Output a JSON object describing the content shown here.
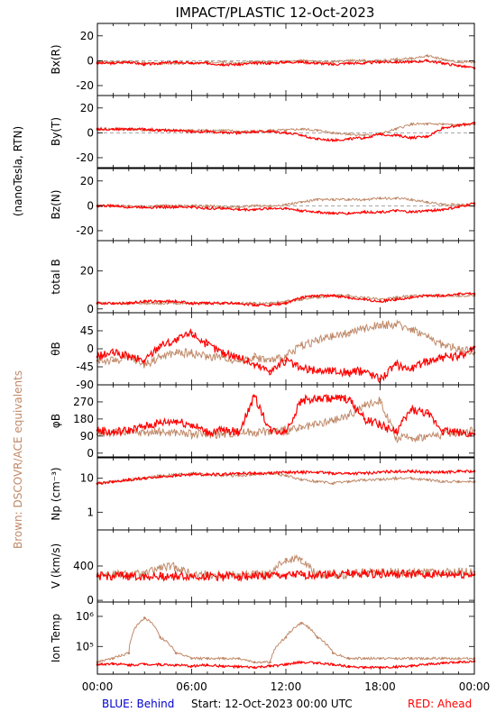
{
  "title": "IMPACT/PLASTIC   12-Oct-2023",
  "left_labels": {
    "units": "(nanoTesla, RTN)",
    "brown_note": "Brown: DSCOVR/ACE equivalents"
  },
  "footer": {
    "blue": "BLUE: Behind",
    "start": "Start: 12-Oct-2023 00:00 UTC",
    "red": "RED: Ahead"
  },
  "colors": {
    "ahead": "#ff0000",
    "equivalent": "#c08a6a",
    "behind": "#0000cc",
    "axis": "#000000"
  },
  "chart_data": [
    {
      "type": "scatter",
      "ylabel": "Bx(R)",
      "ylim": [
        -28,
        30
      ],
      "yticks": [
        "20",
        "0",
        "-20"
      ],
      "yticks_values": [
        20,
        0,
        -20
      ],
      "zero_line": true,
      "series": [
        {
          "name": "RED: Ahead",
          "x": [
            0,
            1,
            2,
            3,
            4,
            5,
            6,
            7,
            8,
            9,
            10,
            11,
            12,
            13,
            14,
            15,
            16,
            17,
            18,
            19,
            20,
            21,
            22,
            23,
            24
          ],
          "values": [
            -2,
            -2,
            -1,
            -3,
            -2,
            -1,
            -2,
            -2,
            -3,
            -3,
            -2,
            -2,
            -1,
            -1,
            -2,
            -3,
            -2,
            -2,
            -1,
            -1,
            -1,
            0,
            -2,
            -4,
            -6
          ]
        },
        {
          "x": [
            0,
            1,
            2,
            3,
            4,
            5,
            6,
            7,
            8,
            9,
            10,
            11,
            12,
            13,
            14,
            15,
            16,
            17,
            18,
            19,
            20,
            21,
            22,
            23,
            24
          ],
          "values": [
            -1,
            -1,
            -1,
            -2,
            -2,
            -2,
            -2,
            -1,
            -1,
            -2,
            -1,
            -1,
            -1,
            0,
            -1,
            -1,
            0,
            0,
            0,
            1,
            2,
            4,
            1,
            -1,
            -1
          ]
        }
      ]
    },
    {
      "type": "scatter",
      "ylabel": "By(T)",
      "ylim": [
        -28,
        30
      ],
      "yticks": [
        "20",
        "0",
        "-20"
      ],
      "yticks_values": [
        20,
        0,
        -20
      ],
      "zero_line": true,
      "series": [
        {
          "x": [
            0,
            1,
            2,
            3,
            4,
            5,
            6,
            7,
            8,
            9,
            10,
            11,
            12,
            13,
            14,
            15,
            16,
            17,
            18,
            19,
            20,
            21,
            22,
            23,
            24
          ],
          "values": [
            3,
            3,
            3,
            3,
            2,
            2,
            1,
            1,
            0,
            0,
            1,
            1,
            0,
            -2,
            -5,
            -6,
            -5,
            -4,
            -1,
            -2,
            -4,
            -3,
            4,
            6,
            8
          ]
        },
        {
          "x": [
            0,
            1,
            2,
            3,
            4,
            5,
            6,
            7,
            8,
            9,
            10,
            11,
            12,
            13,
            14,
            15,
            16,
            17,
            18,
            19,
            20,
            21,
            22,
            23,
            24
          ],
          "values": [
            3,
            3,
            3,
            2,
            2,
            2,
            2,
            2,
            2,
            1,
            1,
            2,
            2,
            3,
            2,
            0,
            -1,
            -2,
            -1,
            3,
            7,
            7,
            7,
            6,
            7
          ]
        }
      ]
    },
    {
      "type": "scatter",
      "ylabel": "Bz(N)",
      "ylim": [
        -28,
        30
      ],
      "yticks": [
        "20",
        "0",
        "-20"
      ],
      "yticks_values": [
        20,
        0,
        -20
      ],
      "zero_line": true,
      "series": [
        {
          "x": [
            0,
            1,
            2,
            3,
            4,
            5,
            6,
            7,
            8,
            9,
            10,
            11,
            12,
            13,
            14,
            15,
            16,
            17,
            18,
            19,
            20,
            21,
            22,
            23,
            24
          ],
          "values": [
            0,
            0,
            -1,
            -1,
            -1,
            -1,
            -1,
            -2,
            -2,
            -3,
            -3,
            -2,
            -2,
            -4,
            -5,
            -6,
            -6,
            -5,
            -5,
            -4,
            -5,
            -4,
            -3,
            -1,
            2
          ]
        },
        {
          "x": [
            0,
            1,
            2,
            3,
            4,
            5,
            6,
            7,
            8,
            9,
            10,
            11,
            12,
            13,
            14,
            15,
            16,
            17,
            18,
            19,
            20,
            21,
            22,
            23,
            24
          ],
          "values": [
            0,
            0,
            0,
            -1,
            0,
            0,
            0,
            0,
            -1,
            -1,
            0,
            0,
            1,
            3,
            5,
            5,
            5,
            5,
            6,
            6,
            5,
            3,
            1,
            1,
            0
          ]
        }
      ]
    },
    {
      "type": "scatter",
      "ylabel": "total B",
      "ylim": [
        -2,
        36
      ],
      "yticks": [
        "20",
        "0"
      ],
      "yticks_values": [
        20,
        0
      ],
      "zero_line": false,
      "series": [
        {
          "x": [
            0,
            1,
            2,
            3,
            4,
            5,
            6,
            7,
            8,
            9,
            10,
            11,
            12,
            13,
            14,
            15,
            16,
            17,
            18,
            19,
            20,
            21,
            22,
            23,
            24
          ],
          "values": [
            3,
            3,
            3,
            4,
            4,
            4,
            3,
            3,
            3,
            3,
            2,
            2,
            3,
            6,
            7,
            7,
            6,
            5,
            4,
            5,
            6,
            7,
            7,
            8,
            8
          ]
        },
        {
          "x": [
            0,
            1,
            2,
            3,
            4,
            5,
            6,
            7,
            8,
            9,
            10,
            11,
            12,
            13,
            14,
            15,
            16,
            17,
            18,
            19,
            20,
            21,
            22,
            23,
            24
          ],
          "values": [
            3,
            3,
            3,
            3,
            3,
            3,
            3,
            3,
            3,
            3,
            3,
            3,
            4,
            5,
            6,
            7,
            7,
            6,
            5,
            6,
            7,
            7,
            7,
            7,
            7
          ]
        }
      ]
    },
    {
      "type": "scatter",
      "ylabel": "θB",
      "ylim": [
        -90,
        90
      ],
      "yticks": [
        "45",
        "0",
        "-45",
        "-90"
      ],
      "yticks_values": [
        45,
        0,
        -45,
        -90
      ],
      "zero_line": false,
      "series": [
        {
          "x": [
            0,
            1,
            2,
            3,
            4,
            5,
            6,
            7,
            8,
            9,
            10,
            11,
            12,
            13,
            14,
            15,
            16,
            17,
            18,
            19,
            20,
            21,
            22,
            23,
            24
          ],
          "values": [
            -20,
            -10,
            -20,
            -30,
            10,
            20,
            40,
            10,
            -10,
            -20,
            -40,
            -55,
            -30,
            -50,
            -55,
            -55,
            -60,
            -55,
            -75,
            -40,
            -50,
            -30,
            -20,
            -20,
            5
          ]
        },
        {
          "x": [
            0,
            1,
            2,
            3,
            4,
            5,
            6,
            7,
            8,
            9,
            10,
            11,
            12,
            13,
            14,
            15,
            16,
            17,
            18,
            19,
            20,
            21,
            22,
            23,
            24
          ],
          "values": [
            -30,
            -30,
            -20,
            -40,
            -20,
            -10,
            -10,
            -20,
            -20,
            -30,
            -20,
            -30,
            -20,
            10,
            20,
            30,
            40,
            50,
            60,
            60,
            50,
            30,
            10,
            0,
            -10
          ]
        }
      ]
    },
    {
      "type": "scatter",
      "ylabel": "φB",
      "ylim": [
        -20,
        360
      ],
      "yticks": [
        "270",
        "180",
        "90",
        "0"
      ],
      "yticks_values": [
        270,
        180,
        90,
        0
      ],
      "zero_line": false,
      "series": [
        {
          "x": [
            0,
            1,
            2,
            3,
            4,
            5,
            6,
            7,
            8,
            9,
            10,
            11,
            12,
            13,
            14,
            15,
            16,
            17,
            18,
            19,
            20,
            21,
            22,
            23,
            24
          ],
          "values": [
            120,
            110,
            120,
            140,
            160,
            170,
            150,
            110,
            120,
            110,
            300,
            120,
            115,
            280,
            285,
            290,
            285,
            180,
            150,
            110,
            230,
            210,
            120,
            110,
            100
          ]
        },
        {
          "x": [
            0,
            1,
            2,
            3,
            4,
            5,
            6,
            7,
            8,
            9,
            10,
            11,
            12,
            13,
            14,
            15,
            16,
            17,
            18,
            19,
            20,
            21,
            22,
            23,
            24
          ],
          "values": [
            100,
            110,
            110,
            110,
            110,
            110,
            100,
            100,
            100,
            110,
            110,
            115,
            120,
            130,
            150,
            170,
            200,
            250,
            280,
            80,
            80,
            90,
            100,
            110,
            120
          ]
        }
      ]
    },
    {
      "type": "scatter",
      "ylabel": "Np (cm⁻³)",
      "log": true,
      "ylim": [
        0.3,
        40
      ],
      "yticks": [
        "10",
        "1"
      ],
      "yticks_values": [
        10,
        1
      ],
      "zero_line": false,
      "series": [
        {
          "x": [
            0,
            1,
            2,
            3,
            4,
            5,
            6,
            7,
            8,
            9,
            10,
            11,
            12,
            13,
            14,
            15,
            16,
            17,
            18,
            19,
            20,
            21,
            22,
            23,
            24
          ],
          "values": [
            7,
            8,
            9,
            10,
            11,
            12,
            13,
            13,
            13,
            14,
            14,
            14,
            15,
            15,
            15,
            14,
            14,
            14,
            15,
            16,
            16,
            15,
            15,
            16,
            16
          ]
        },
        {
          "x": [
            0,
            1,
            2,
            3,
            4,
            5,
            6,
            7,
            8,
            9,
            10,
            11,
            12,
            13,
            14,
            15,
            16,
            17,
            18,
            19,
            20,
            21,
            22,
            23,
            24
          ],
          "values": [
            7,
            8,
            9,
            10,
            12,
            13,
            14,
            13,
            12,
            12,
            13,
            14,
            12,
            9,
            8,
            7,
            8,
            9,
            9,
            10,
            10,
            9,
            8,
            8,
            8
          ]
        }
      ]
    },
    {
      "type": "scatter",
      "ylabel": "V (km/s)",
      "ylim": [
        -20,
        820
      ],
      "yticks": [
        "400",
        "0"
      ],
      "yticks_values": [
        400,
        0
      ],
      "zero_line": false,
      "series": [
        {
          "x": [
            0,
            1,
            2,
            3,
            4,
            5,
            6,
            7,
            8,
            9,
            10,
            11,
            12,
            13,
            14,
            15,
            16,
            17,
            18,
            19,
            20,
            21,
            22,
            23,
            24
          ],
          "values": [
            280,
            280,
            280,
            280,
            280,
            280,
            280,
            280,
            280,
            280,
            280,
            285,
            290,
            295,
            300,
            305,
            310,
            315,
            310,
            305,
            300,
            300,
            300,
            300,
            300
          ]
        },
        {
          "x": [
            0,
            1,
            2,
            3,
            4,
            5,
            6,
            7,
            8,
            9,
            10,
            11,
            12,
            13,
            14,
            15,
            16,
            17,
            18,
            19,
            20,
            21,
            22,
            23,
            24
          ],
          "values": [
            300,
            300,
            300,
            300,
            380,
            390,
            300,
            300,
            300,
            300,
            300,
            300,
            480,
            480,
            300,
            300,
            300,
            320,
            330,
            330,
            320,
            320,
            320,
            330,
            330
          ]
        }
      ]
    },
    {
      "type": "scatter",
      "ylabel": "Ion Temp",
      "log": true,
      "ylim": [
        12000,
        3000000
      ],
      "yticks": [
        "10⁶",
        "10⁵"
      ],
      "yticks_values": [
        1000000,
        100000
      ],
      "zero_line": false,
      "xticks": [
        "00:00",
        "06:00",
        "12:00",
        "18:00",
        "00:00"
      ],
      "xticks_values": [
        0,
        6,
        12,
        18,
        24
      ],
      "series": [
        {
          "x": [
            0,
            1,
            2,
            3,
            4,
            5,
            6,
            7,
            8,
            9,
            10,
            11,
            12,
            13,
            14,
            15,
            16,
            17,
            18,
            19,
            20,
            21,
            22,
            23,
            24
          ],
          "values": [
            25000,
            27000,
            24000,
            26000,
            25000,
            24000,
            22000,
            24000,
            22000,
            21000,
            20000,
            22000,
            25000,
            30000,
            28000,
            25000,
            22000,
            20000,
            20000,
            21000,
            22000,
            25000,
            28000,
            30000,
            32000
          ]
        },
        {
          "x": [
            0,
            1,
            2,
            3,
            4,
            5,
            6,
            7,
            8,
            9,
            10,
            11,
            12,
            13,
            14,
            15,
            16,
            17,
            18,
            19,
            20,
            21,
            22,
            23,
            24
          ],
          "values": [
            30000,
            40000,
            60000,
            900000,
            200000,
            60000,
            40000,
            40000,
            40000,
            40000,
            30000,
            30000,
            200000,
            600000,
            200000,
            60000,
            40000,
            40000,
            40000,
            40000,
            40000,
            40000,
            40000,
            40000,
            40000
          ]
        }
      ]
    }
  ]
}
